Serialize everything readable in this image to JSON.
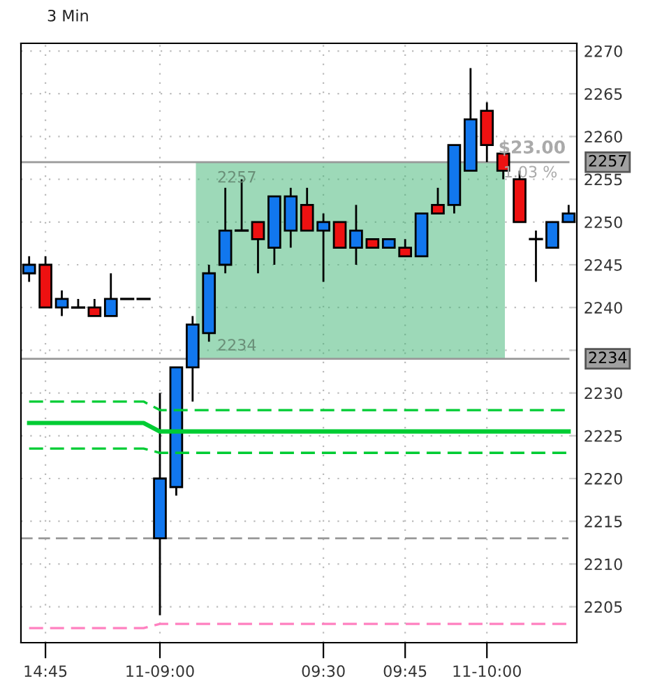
{
  "chart_data": {
    "type": "candlestick",
    "title": "3 Min",
    "categories": [
      null,
      "14:45",
      null,
      null,
      null,
      null,
      null,
      null,
      "11-09:00",
      null,
      null,
      null,
      null,
      null,
      null,
      null,
      null,
      null,
      "09:30",
      null,
      null,
      null,
      null,
      "09:45",
      null,
      null,
      null,
      null,
      "11-10:00",
      null,
      null,
      null,
      null,
      null
    ],
    "ohlc": [
      [
        2244,
        2246,
        2243,
        2245
      ],
      [
        2245,
        2246,
        2240,
        2240
      ],
      [
        2240,
        2242,
        2239,
        2241
      ],
      [
        2240,
        2241,
        2240,
        2240
      ],
      [
        2240,
        2241,
        2239,
        2239
      ],
      [
        2239,
        2244,
        2239,
        2241
      ],
      [
        2241,
        2241,
        2241,
        2241
      ],
      [
        2241,
        2241,
        2241,
        2241
      ],
      [
        2213,
        2230,
        2204,
        2220
      ],
      [
        2219,
        2233,
        2218,
        2233
      ],
      [
        2233,
        2239,
        2229,
        2238
      ],
      [
        2237,
        2245,
        2236,
        2244
      ],
      [
        2245,
        2254,
        2244,
        2249
      ],
      [
        2249,
        2255,
        2249,
        2249
      ],
      [
        2250,
        2250,
        2244,
        2248
      ],
      [
        2247,
        2253,
        2245,
        2253
      ],
      [
        2249,
        2254,
        2247,
        2253
      ],
      [
        2252,
        2254,
        2249,
        2249
      ],
      [
        2249,
        2251,
        2243,
        2250
      ],
      [
        2250,
        2250,
        2247,
        2247
      ],
      [
        2247,
        2252,
        2245,
        2249
      ],
      [
        2248,
        2248,
        2247,
        2247
      ],
      [
        2247,
        2248,
        2247,
        2248
      ],
      [
        2247,
        2248,
        2246,
        2246
      ],
      [
        2246,
        2251,
        2246,
        2251
      ],
      [
        2252,
        2254,
        2251,
        2251
      ],
      [
        2252,
        2259,
        2251,
        2259
      ],
      [
        2256,
        2268,
        2256,
        2262
      ],
      [
        2263,
        2264,
        2257,
        2259
      ],
      [
        2258,
        2258,
        2255,
        2256
      ],
      [
        2255,
        2256,
        2250,
        2250
      ],
      [
        2248,
        2249,
        2243,
        2248
      ],
      [
        2247,
        2250,
        2247,
        2250
      ],
      [
        2250,
        2252,
        2250,
        2251
      ]
    ],
    "colors": [
      "#1177ee",
      "#ee1111",
      "#1177ee",
      "#000000",
      "#ee1111",
      "#1177ee",
      "#000000",
      "#000000",
      "#1177ee",
      "#1177ee",
      "#1177ee",
      "#1177ee",
      "#1177ee",
      "#000000",
      "#ee1111",
      "#1177ee",
      "#1177ee",
      "#ee1111",
      "#1177ee",
      "#ee1111",
      "#1177ee",
      "#ee1111",
      "#1177ee",
      "#ee1111",
      "#1177ee",
      "#ee1111",
      "#1177ee",
      "#1177ee",
      "#ee1111",
      "#ee1111",
      "#ee1111",
      "#000000",
      "#1177ee",
      "#1177ee"
    ],
    "series": [
      {
        "type": "line",
        "line_style": "dashed",
        "color": "#00cc33",
        "values": [
          2229,
          2229,
          2229,
          2229,
          2229,
          2229,
          2229,
          2229,
          2228,
          2228,
          2228,
          2228,
          2228,
          2228,
          2228,
          2228,
          2228,
          2228,
          2228,
          2228,
          2228,
          2228,
          2228,
          2228,
          2228,
          2228,
          2228,
          2228,
          2228,
          2228,
          2228,
          2228,
          2228,
          2228
        ]
      },
      {
        "type": "line",
        "line_style": "solid",
        "color": "#00cc33",
        "values": [
          2226.5,
          2226.5,
          2226.5,
          2226.5,
          2226.5,
          2226.5,
          2226.5,
          2226.5,
          2225.5,
          2225.5,
          2225.5,
          2225.5,
          2225.5,
          2225.5,
          2225.5,
          2225.5,
          2225.5,
          2225.5,
          2225.5,
          2225.5,
          2225.5,
          2225.5,
          2225.5,
          2225.5,
          2225.5,
          2225.5,
          2225.5,
          2225.5,
          2225.5,
          2225.5,
          2225.5,
          2225.5,
          2225.5,
          2225.5
        ]
      },
      {
        "type": "line",
        "line_style": "dashed",
        "color": "#00cc33",
        "values": [
          2223.5,
          2223.5,
          2223.5,
          2223.5,
          2223.5,
          2223.5,
          2223.5,
          2223.5,
          2223,
          2223,
          2223,
          2223,
          2223,
          2223,
          2223,
          2223,
          2223,
          2223,
          2223,
          2223,
          2223,
          2223,
          2223,
          2223,
          2223,
          2223,
          2223,
          2223,
          2223,
          2223,
          2223,
          2223,
          2223,
          2223
        ]
      },
      {
        "type": "line",
        "line_style": "dashed",
        "color": "#ff80c0",
        "values": [
          2202.5,
          2202.5,
          2202.5,
          2202.5,
          2202.5,
          2202.5,
          2202.5,
          2202.5,
          2203,
          2203,
          2203,
          2203,
          2203,
          2203,
          2203,
          2203,
          2203,
          2203,
          2203,
          2203,
          2203,
          2203,
          2203,
          2203,
          2203,
          2203,
          2203,
          2203,
          2203,
          2203,
          2203,
          2203,
          2203,
          2203
        ]
      }
    ],
    "ylim": [
      2200.8,
      2270.9
    ],
    "yticks": [
      2205,
      2210,
      2215,
      2220,
      2225,
      2230,
      {
        "value": 2235,
        "label": null
      },
      2240,
      2245,
      2250,
      2255,
      2260,
      2265,
      2270
    ],
    "grid": true,
    "ref_lines": [
      {
        "axis": "y",
        "value": 2257,
        "label": "2257",
        "color": "#999999",
        "line_style": "solid"
      },
      {
        "axis": "y",
        "value": 2234,
        "label": "2234",
        "color": "#999999",
        "line_style": "solid"
      },
      {
        "axis": "y",
        "value": 2213,
        "color": "#999999",
        "line_style": "dashed"
      }
    ],
    "bands": [
      {
        "axis": "y",
        "from": 2234,
        "to": 2257,
        "color": "#3cb371"
      }
    ],
    "annotations": [
      "2257",
      "2234",
      "$23.00",
      "1.03 %"
    ]
  }
}
